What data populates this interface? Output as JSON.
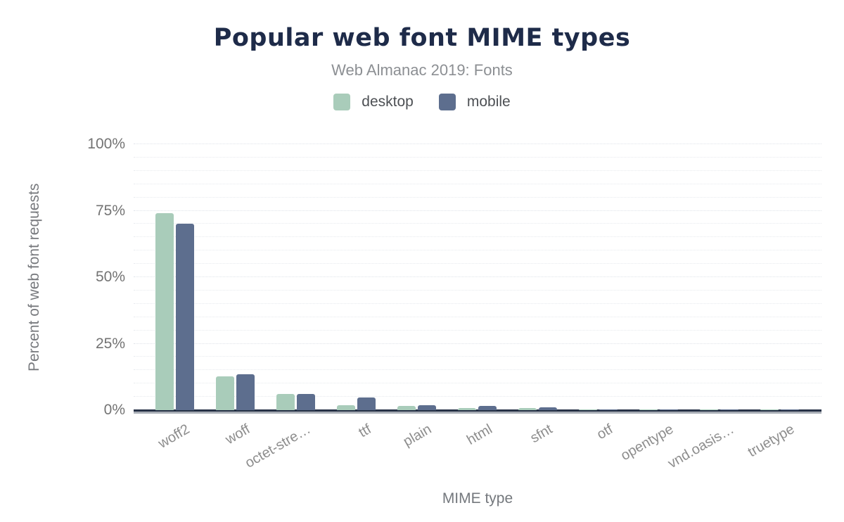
{
  "figure": {
    "title": "Popular web font MIME types",
    "subtitle": "Web Almanac 2019: Fonts"
  },
  "colors": {
    "title_navy": "#1e2b49",
    "desktop": "#a9ccba",
    "mobile": "#5d6e8e",
    "axis_line": "#273247"
  },
  "chart_data": {
    "type": "bar",
    "title": "Popular web font MIME types",
    "subtitle": "Web Almanac 2019: Fonts",
    "xlabel": "MIME type",
    "ylabel": "Percent of web font requests",
    "ylim": [
      0,
      100
    ],
    "y_tick_labels": [
      "0%",
      "25%",
      "50%",
      "75%",
      "100%"
    ],
    "y_tick_values": [
      0,
      25,
      50,
      75,
      100
    ],
    "minor_grid_step_percent": 5,
    "grid": "horizontal dotted",
    "legend_position": "top-center",
    "categories": [
      "woff2",
      "woff",
      "octet-stre…",
      "ttf",
      "plain",
      "html",
      "sfnt",
      "otf",
      "opentype",
      "vnd.oasis…",
      "truetype"
    ],
    "series": [
      {
        "name": "desktop",
        "color": "#a9ccba",
        "values": [
          74.0,
          12.6,
          6.2,
          1.9,
          1.6,
          0.9,
          0.9,
          0.2,
          0.15,
          0.1,
          0.1
        ]
      },
      {
        "name": "mobile",
        "color": "#5d6e8e",
        "values": [
          70.0,
          13.6,
          6.1,
          4.8,
          1.9,
          1.6,
          1.1,
          0.3,
          0.3,
          0.3,
          0.3
        ]
      }
    ]
  }
}
